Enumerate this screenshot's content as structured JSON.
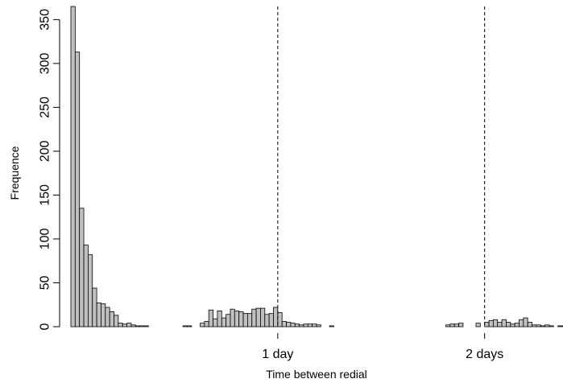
{
  "chart_data": {
    "type": "bar",
    "title": "",
    "xlabel": "Time between redial",
    "ylabel": "Frequence",
    "bin_width_hours": 0.5,
    "x_range_hours": [
      0,
      57
    ],
    "ylim": [
      0,
      365
    ],
    "y_ticks": [
      0,
      50,
      100,
      150,
      200,
      250,
      300,
      350
    ],
    "x_ticks": [
      {
        "hours": 24,
        "label": "1 day"
      },
      {
        "hours": 48,
        "label": "2 days"
      }
    ],
    "reference_lines_hours": [
      24,
      48
    ],
    "bar_fill": "#c0c0c0",
    "bar_stroke": "#000000",
    "grid": false,
    "values": [
      365,
      313,
      135,
      93,
      82,
      44,
      27,
      26,
      22,
      17,
      13,
      4,
      3,
      4,
      2,
      1,
      1,
      1,
      0,
      0,
      0,
      0,
      0,
      0,
      0,
      0,
      1,
      1,
      0,
      0,
      4,
      6,
      19,
      9,
      18,
      10,
      14,
      20,
      18,
      17,
      15,
      15,
      20,
      21,
      21,
      14,
      15,
      22,
      16,
      6,
      5,
      4,
      3,
      2,
      3,
      3,
      3,
      2,
      0,
      0,
      1,
      0,
      0,
      0,
      0,
      0,
      0,
      0,
      0,
      0,
      0,
      0,
      0,
      0,
      0,
      0,
      0,
      0,
      0,
      0,
      0,
      0,
      0,
      0,
      0,
      0,
      0,
      2,
      3,
      3,
      4,
      0,
      0,
      0,
      4,
      0,
      5,
      7,
      8,
      5,
      8,
      5,
      3,
      4,
      8,
      10,
      5,
      2,
      2,
      1,
      2,
      1,
      0,
      1,
      1,
      0,
      1,
      2,
      0,
      0,
      0,
      0,
      0,
      1
    ]
  }
}
